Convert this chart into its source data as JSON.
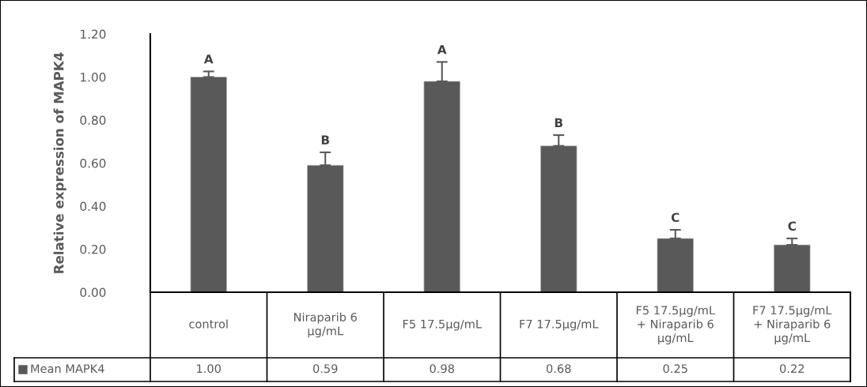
{
  "chart_data": {
    "type": "bar",
    "ylabel": "Relative expression of MAPK4",
    "categories": [
      "control",
      "Niraparib 6\nµg/mL",
      "F5 17.5µg/mL",
      "F7 17.5µg/mL",
      "F5 17.5µg/mL\n+ Niraparib 6\nµg/mL",
      "F7 17.5µg/mL\n+ Niraparib 6\nµg/mL"
    ],
    "series": [
      {
        "name": "Mean MAPK4",
        "color": "#595959",
        "values": [
          1.0,
          0.59,
          0.98,
          0.68,
          0.25,
          0.22
        ],
        "errors": [
          0.026,
          0.06,
          0.09,
          0.05,
          0.04,
          0.03
        ],
        "value_labels": [
          "1.00",
          "0.59",
          "0.98",
          "0.68",
          "0.25",
          "0.22"
        ]
      }
    ],
    "ylim": [
      0,
      1.2
    ],
    "yticks": [
      {
        "value": 0,
        "label": "0.00"
      },
      {
        "value": 0.2,
        "label": "0.20"
      },
      {
        "value": 0.4,
        "label": "0.40"
      },
      {
        "value": 0.6,
        "label": "0.60"
      },
      {
        "value": 0.8,
        "label": "0.80"
      },
      {
        "value": 1.0,
        "label": "1.00"
      },
      {
        "value": 1.2,
        "label": "1.20"
      }
    ],
    "annotations": [
      "A",
      "B",
      "A",
      "B",
      "C",
      "C"
    ],
    "grid": false,
    "legend": "bottom left"
  }
}
